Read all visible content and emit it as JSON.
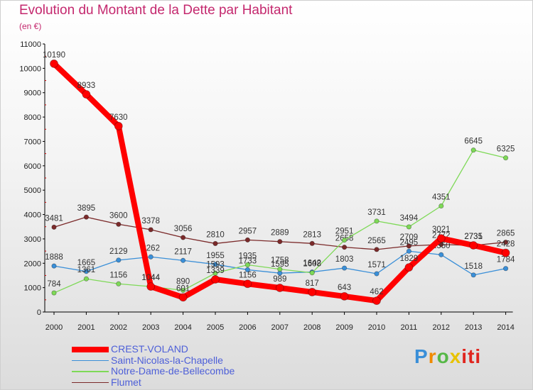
{
  "title": "Evolution du Montant de la Dette par Habitant",
  "subtitle": "(en €)",
  "logo": "Proxiti",
  "chart_data": {
    "type": "line",
    "x": [
      "2000",
      "2001",
      "2002",
      "2003",
      "2004",
      "2005",
      "2006",
      "2007",
      "2008",
      "2009",
      "2010",
      "2011",
      "2012",
      "2013",
      "2014"
    ],
    "ylim": [
      0,
      11000
    ],
    "yticks": [
      0,
      1000,
      2000,
      3000,
      4000,
      5000,
      6000,
      7000,
      8000,
      9000,
      10000,
      11000
    ],
    "grid": false,
    "legend_position": "bottom-left",
    "series": [
      {
        "name": "Flumet",
        "color": "#7b2a2a",
        "values": [
          3481,
          3895,
          3600,
          3378,
          3056,
          2810,
          2957,
          2889,
          2813,
          2658,
          2565,
          2709,
          2772,
          2731,
          2865
        ]
      },
      {
        "name": "Saint-Nicolas-la-Chapelle",
        "color": "#3a8fd8",
        "values": [
          1888,
          1665,
          2129,
          2262,
          2117,
          1955,
          1733,
          1595,
          1642,
          1803,
          1571,
          2495,
          2350,
          1518,
          1784
        ]
      },
      {
        "name": "Notre-Dame-de-Bellecombe",
        "color": "#7ed957",
        "values": [
          784,
          1361,
          1156,
          1044,
          890,
          1593,
          1935,
          1758,
          1608,
          2951,
          3731,
          3494,
          4351,
          6645,
          6325
        ]
      },
      {
        "name": "CREST-VOLAND",
        "color": "#ff0000",
        "values": [
          10190,
          8933,
          7630,
          1044,
          601,
          1339,
          1156,
          989,
          817,
          643,
          462,
          1829,
          3021,
          2735,
          2428
        ]
      }
    ],
    "legend_order": [
      "CREST-VOLAND",
      "Saint-Nicolas-la-Chapelle",
      "Notre-Dame-de-Bellecombe",
      "Flumet"
    ]
  }
}
